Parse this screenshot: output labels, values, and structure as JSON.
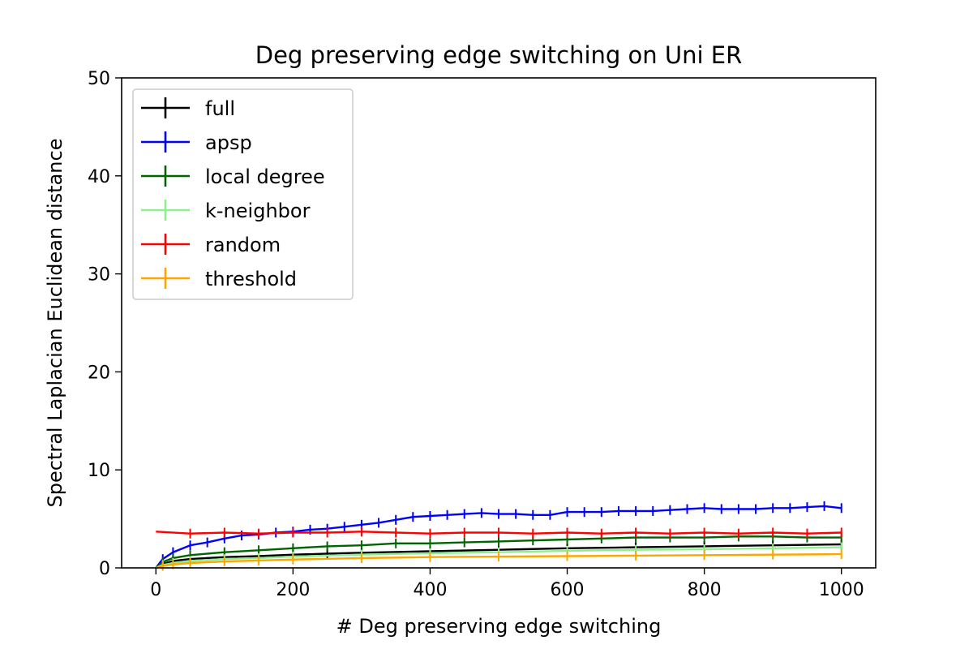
{
  "chart_data": {
    "type": "line",
    "title": "Deg preserving edge switching on Uni ER",
    "xlabel": "# Deg preserving edge switching",
    "ylabel": "Spectral Laplacian Euclidean distance",
    "xlim": [
      -50,
      1050
    ],
    "ylim": [
      0,
      50
    ],
    "xticks": [
      0,
      200,
      400,
      600,
      800,
      1000
    ],
    "yticks": [
      0,
      10,
      20,
      30,
      40,
      50
    ],
    "grid": false,
    "error_bars": true,
    "legend_position": "upper left",
    "series": [
      {
        "name": "full",
        "color": "#000000",
        "x": [
          0,
          10,
          25,
          50,
          100,
          150,
          200,
          250,
          300,
          400,
          500,
          600,
          700,
          800,
          900,
          1000
        ],
        "values": [
          0.0,
          0.4,
          0.7,
          0.9,
          1.1,
          1.2,
          1.35,
          1.45,
          1.55,
          1.7,
          1.85,
          2.0,
          2.1,
          2.2,
          2.3,
          2.4
        ]
      },
      {
        "name": "apsp",
        "color": "#0000ff",
        "x": [
          0,
          10,
          25,
          50,
          75,
          100,
          125,
          150,
          175,
          200,
          225,
          250,
          275,
          300,
          325,
          350,
          375,
          400,
          425,
          450,
          475,
          500,
          525,
          550,
          575,
          600,
          625,
          650,
          675,
          700,
          725,
          750,
          775,
          800,
          825,
          850,
          875,
          900,
          925,
          950,
          975,
          1000
        ],
        "values": [
          0.0,
          0.9,
          1.6,
          2.3,
          2.6,
          3.0,
          3.3,
          3.4,
          3.6,
          3.7,
          3.9,
          4.0,
          4.2,
          4.4,
          4.6,
          4.9,
          5.2,
          5.3,
          5.4,
          5.5,
          5.6,
          5.5,
          5.5,
          5.4,
          5.4,
          5.7,
          5.7,
          5.7,
          5.8,
          5.8,
          5.8,
          5.9,
          6.0,
          6.1,
          6.0,
          6.0,
          6.0,
          6.1,
          6.1,
          6.2,
          6.3,
          6.1
        ]
      },
      {
        "name": "local degree",
        "color": "#006400",
        "x": [
          0,
          10,
          25,
          50,
          100,
          150,
          200,
          250,
          300,
          350,
          400,
          450,
          500,
          550,
          600,
          650,
          700,
          750,
          800,
          850,
          900,
          950,
          1000
        ],
        "values": [
          0.0,
          0.6,
          1.0,
          1.3,
          1.6,
          1.8,
          2.0,
          2.2,
          2.3,
          2.5,
          2.5,
          2.6,
          2.7,
          2.8,
          2.9,
          3.0,
          3.1,
          3.1,
          3.1,
          3.2,
          3.2,
          3.1,
          3.1
        ]
      },
      {
        "name": "k-neighbor",
        "color": "#90ee90",
        "x": [
          0,
          10,
          25,
          50,
          100,
          150,
          200,
          300,
          400,
          500,
          600,
          700,
          800,
          900,
          1000
        ],
        "values": [
          0.0,
          0.3,
          0.5,
          0.7,
          0.9,
          1.0,
          1.15,
          1.35,
          1.5,
          1.6,
          1.75,
          1.85,
          1.9,
          2.0,
          2.1
        ]
      },
      {
        "name": "random",
        "color": "#ff0000",
        "x": [
          0,
          50,
          100,
          150,
          200,
          250,
          300,
          350,
          400,
          450,
          500,
          550,
          600,
          650,
          700,
          750,
          800,
          850,
          900,
          950,
          1000
        ],
        "values": [
          3.7,
          3.5,
          3.6,
          3.5,
          3.6,
          3.6,
          3.7,
          3.6,
          3.5,
          3.6,
          3.6,
          3.5,
          3.6,
          3.5,
          3.6,
          3.5,
          3.6,
          3.5,
          3.6,
          3.5,
          3.6
        ]
      },
      {
        "name": "threshold",
        "color": "#ffa500",
        "x": [
          0,
          10,
          25,
          50,
          100,
          150,
          200,
          300,
          400,
          500,
          600,
          700,
          800,
          900,
          1000
        ],
        "values": [
          0.0,
          0.2,
          0.35,
          0.5,
          0.65,
          0.75,
          0.85,
          1.0,
          1.1,
          1.15,
          1.2,
          1.25,
          1.3,
          1.35,
          1.4
        ]
      }
    ]
  }
}
